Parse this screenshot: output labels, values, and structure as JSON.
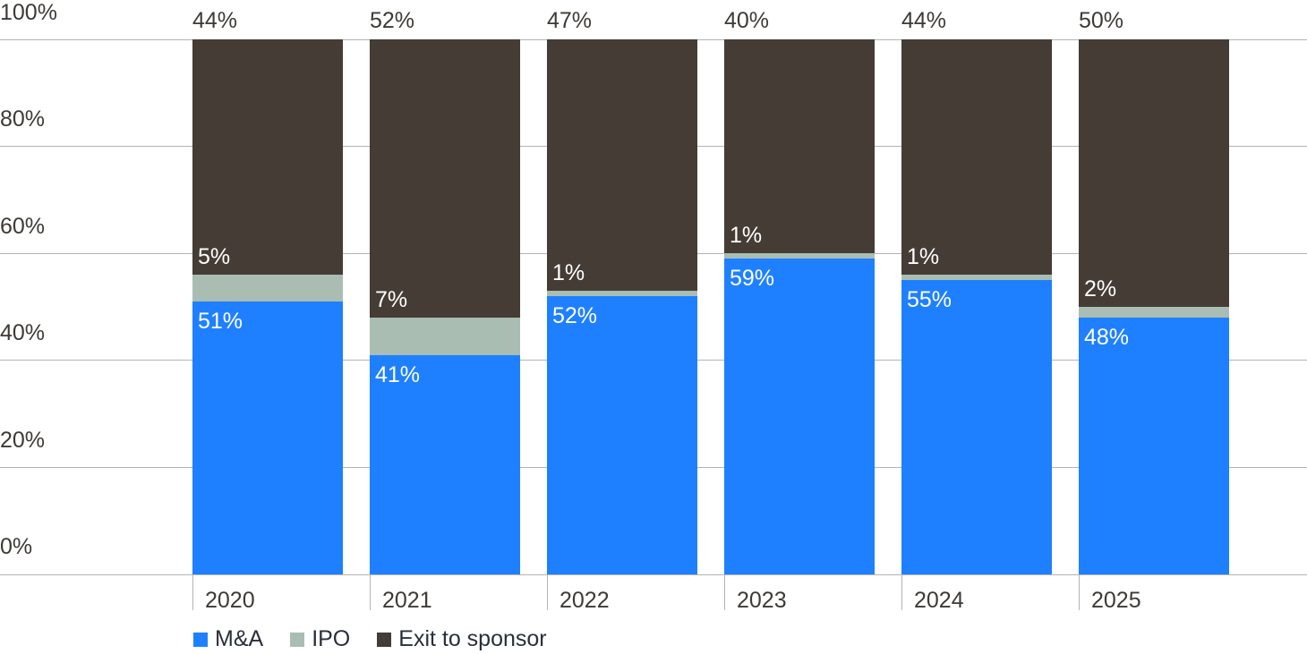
{
  "chart_data": {
    "type": "bar",
    "stacked": true,
    "title": "",
    "xlabel": "",
    "ylabel": "",
    "ylim": [
      0,
      100
    ],
    "yticks": [
      "0%",
      "20%",
      "40%",
      "60%",
      "80%",
      "100%"
    ],
    "categories": [
      "2020",
      "2021",
      "2022",
      "2023",
      "2024",
      "2025"
    ],
    "series": [
      {
        "name": "M&A",
        "color": "#1f80ff",
        "values": [
          51,
          41,
          52,
          59,
          55,
          48
        ]
      },
      {
        "name": "IPO",
        "color": "#a9bdb3",
        "values": [
          5,
          7,
          1,
          1,
          1,
          2
        ]
      },
      {
        "name": "Exit to sponsor",
        "color": "#443c35",
        "values": [
          44,
          52,
          47,
          40,
          44,
          50
        ]
      }
    ],
    "legend_position": "bottom-left",
    "grid": true
  },
  "labels": {
    "yticks": [
      "100%",
      "80%",
      "60%",
      "40%",
      "20%",
      "0%"
    ],
    "years": [
      "2020",
      "2021",
      "2022",
      "2023",
      "2024",
      "2025"
    ],
    "ma": [
      "51%",
      "41%",
      "52%",
      "59%",
      "55%",
      "48%"
    ],
    "ipo": [
      "5%",
      "7%",
      "1%",
      "1%",
      "1%",
      "2%"
    ],
    "sponsor": [
      "44%",
      "52%",
      "47%",
      "40%",
      "44%",
      "50%"
    ]
  },
  "legend": {
    "ma": "M&A",
    "ipo": "IPO",
    "sponsor": "Exit to sponsor"
  }
}
